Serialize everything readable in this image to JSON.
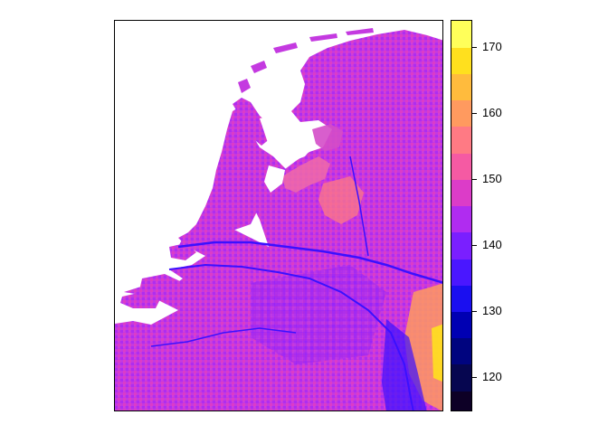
{
  "legend": {
    "min": 115,
    "max": 174,
    "ticks": [
      {
        "value": 120,
        "label": "120"
      },
      {
        "value": 130,
        "label": "130"
      },
      {
        "value": 140,
        "label": "140"
      },
      {
        "value": 150,
        "label": "150"
      },
      {
        "value": 160,
        "label": "160"
      },
      {
        "value": 170,
        "label": "170"
      }
    ],
    "bins": [
      {
        "from": 115,
        "to": 118,
        "color": "#0d0026"
      },
      {
        "from": 118,
        "to": 122,
        "color": "#060650"
      },
      {
        "from": 122,
        "to": 126,
        "color": "#00047f"
      },
      {
        "from": 126,
        "to": 130,
        "color": "#0000b3"
      },
      {
        "from": 130,
        "to": 134,
        "color": "#1a0ff0"
      },
      {
        "from": 134,
        "to": 138,
        "color": "#4a17ff"
      },
      {
        "from": 138,
        "to": 142,
        "color": "#7a1fff"
      },
      {
        "from": 142,
        "to": 146,
        "color": "#b02cf0"
      },
      {
        "from": 146,
        "to": 150,
        "color": "#dc3cc8"
      },
      {
        "from": 150,
        "to": 154,
        "color": "#f55aa3"
      },
      {
        "from": 154,
        "to": 158,
        "color": "#ff7a84"
      },
      {
        "from": 158,
        "to": 162,
        "color": "#ff9a5f"
      },
      {
        "from": 162,
        "to": 166,
        "color": "#ffbb3d"
      },
      {
        "from": 166,
        "to": 170,
        "color": "#ffe01e"
      },
      {
        "from": 170,
        "to": 174,
        "color": "#ffff5a"
      }
    ]
  },
  "map": {
    "land_base_color": "#c43ae0",
    "water_color": "#ffffff",
    "river_color": "#3a10ff",
    "highlight_color": "#ff9a5f"
  }
}
